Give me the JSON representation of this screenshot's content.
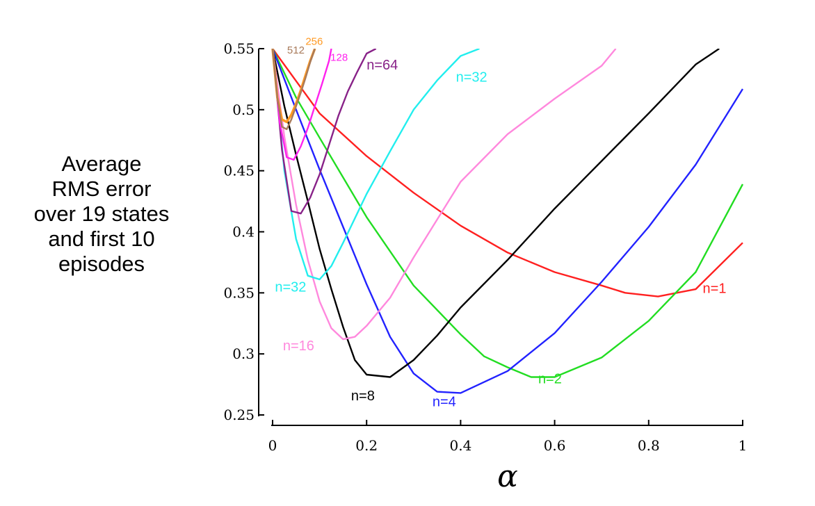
{
  "chart_data": {
    "type": "line",
    "xlabel": "α",
    "ylabel_lines": [
      "Average",
      "RMS error",
      "over 19 states",
      "and first 10",
      "episodes"
    ],
    "xlim": [
      0,
      1
    ],
    "ylim": [
      0.25,
      0.55
    ],
    "x_ticks": [
      0,
      0.2,
      0.4,
      0.6,
      0.8,
      1
    ],
    "x_tick_labels": [
      "0",
      "0.2",
      "0.4",
      "0.6",
      "0.8",
      "1"
    ],
    "y_ticks": [
      0.25,
      0.3,
      0.35,
      0.4,
      0.45,
      0.5,
      0.55
    ],
    "y_tick_labels": [
      "0.25",
      "0.3",
      "0.35",
      "0.4",
      "0.45",
      "0.5",
      "0.55"
    ],
    "grid": false,
    "series": [
      {
        "name": "n=1",
        "color": "#ff2020",
        "x": [
          0,
          0.1,
          0.2,
          0.3,
          0.4,
          0.5,
          0.6,
          0.7,
          0.75,
          0.82,
          0.9,
          1.0
        ],
        "y": [
          0.55,
          0.497,
          0.462,
          0.432,
          0.405,
          0.383,
          0.367,
          0.356,
          0.35,
          0.347,
          0.353,
          0.391
        ]
      },
      {
        "name": "n=2",
        "color": "#22dd22",
        "x": [
          0,
          0.05,
          0.1,
          0.2,
          0.3,
          0.4,
          0.45,
          0.5,
          0.55,
          0.6,
          0.7,
          0.8,
          0.9,
          1.0
        ],
        "y": [
          0.55,
          0.51,
          0.477,
          0.412,
          0.356,
          0.316,
          0.298,
          0.289,
          0.281,
          0.281,
          0.297,
          0.327,
          0.367,
          0.439
        ]
      },
      {
        "name": "n=4",
        "color": "#2222ff",
        "x": [
          0,
          0.05,
          0.1,
          0.15,
          0.2,
          0.25,
          0.3,
          0.35,
          0.4,
          0.5,
          0.6,
          0.7,
          0.8,
          0.9,
          1.0
        ],
        "y": [
          0.55,
          0.5,
          0.451,
          0.404,
          0.357,
          0.314,
          0.284,
          0.269,
          0.268,
          0.286,
          0.317,
          0.359,
          0.404,
          0.455,
          0.517
        ]
      },
      {
        "name": "n=8",
        "color": "#000000",
        "x": [
          0,
          0.025,
          0.05,
          0.075,
          0.1,
          0.125,
          0.15,
          0.175,
          0.2,
          0.25,
          0.3,
          0.35,
          0.4,
          0.5,
          0.6,
          0.7,
          0.8,
          0.9,
          0.95
        ],
        "y": [
          0.55,
          0.503,
          0.463,
          0.425,
          0.386,
          0.353,
          0.322,
          0.295,
          0.283,
          0.281,
          0.295,
          0.315,
          0.338,
          0.377,
          0.419,
          0.458,
          0.497,
          0.537,
          0.55
        ]
      },
      {
        "name": "n=16",
        "color": "#ff88dd",
        "x": [
          0,
          0.025,
          0.05,
          0.075,
          0.1,
          0.125,
          0.15,
          0.175,
          0.2,
          0.25,
          0.3,
          0.35,
          0.4,
          0.5,
          0.6,
          0.7,
          0.73
        ],
        "y": [
          0.55,
          0.478,
          0.422,
          0.377,
          0.343,
          0.321,
          0.312,
          0.314,
          0.323,
          0.346,
          0.379,
          0.41,
          0.441,
          0.48,
          0.509,
          0.536,
          0.55
        ]
      },
      {
        "name": "n=32",
        "color": "#22eeee",
        "x": [
          0,
          0.025,
          0.05,
          0.075,
          0.1,
          0.125,
          0.15,
          0.2,
          0.25,
          0.3,
          0.35,
          0.4,
          0.44
        ],
        "y": [
          0.55,
          0.45,
          0.394,
          0.364,
          0.361,
          0.372,
          0.391,
          0.431,
          0.466,
          0.5,
          0.524,
          0.544,
          0.55
        ]
      },
      {
        "name": "n=64",
        "color": "#882288",
        "x": [
          0,
          0.02,
          0.04,
          0.06,
          0.08,
          0.1,
          0.12,
          0.14,
          0.16,
          0.18,
          0.2,
          0.22
        ],
        "y": [
          0.55,
          0.467,
          0.417,
          0.415,
          0.428,
          0.447,
          0.471,
          0.495,
          0.515,
          0.531,
          0.546,
          0.55
        ]
      },
      {
        "name": "128",
        "color": "#ff22ee",
        "x": [
          0,
          0.015,
          0.03,
          0.045,
          0.06,
          0.075,
          0.09,
          0.105,
          0.12,
          0.125
        ],
        "y": [
          0.55,
          0.49,
          0.461,
          0.459,
          0.47,
          0.485,
          0.503,
          0.521,
          0.54,
          0.55
        ]
      },
      {
        "name": "256",
        "color": "#ff9922",
        "x": [
          0,
          0.01,
          0.02,
          0.03,
          0.04,
          0.05,
          0.06,
          0.07,
          0.08,
          0.09
        ],
        "y": [
          0.55,
          0.51,
          0.492,
          0.49,
          0.496,
          0.505,
          0.516,
          0.528,
          0.54,
          0.55
        ]
      },
      {
        "name": "512",
        "color": "#a87a5a",
        "x": [
          0,
          0.01,
          0.02,
          0.03,
          0.04,
          0.05,
          0.06,
          0.07,
          0.08,
          0.09
        ],
        "y": [
          0.55,
          0.51,
          0.486,
          0.484,
          0.492,
          0.503,
          0.514,
          0.526,
          0.539,
          0.55
        ]
      }
    ],
    "annotations": [
      {
        "text": "n=1",
        "series": "n=1",
        "x": 0.915,
        "y": 0.35,
        "anchor": "start"
      },
      {
        "text": "n=2",
        "series": "n=2",
        "x": 0.565,
        "y": 0.276,
        "anchor": "start"
      },
      {
        "text": "n=4",
        "series": "n=4",
        "x": 0.34,
        "y": 0.257,
        "anchor": "start"
      },
      {
        "text": "n=8",
        "series": "n=8",
        "x": 0.167,
        "y": 0.262,
        "anchor": "start"
      },
      {
        "text": "n=16",
        "series": "n=16",
        "x": 0.022,
        "y": 0.303,
        "anchor": "start"
      },
      {
        "text": "n=32",
        "series": "n=32",
        "x": 0.005,
        "y": 0.351,
        "anchor": "start"
      },
      {
        "text": "n=32",
        "series": "n=32",
        "x": 0.39,
        "y": 0.523,
        "anchor": "start"
      },
      {
        "text": "n=64",
        "series": "n=64",
        "x": 0.2,
        "y": 0.533,
        "anchor": "start"
      },
      {
        "text": "128",
        "series": "128",
        "x": 0.123,
        "y": 0.54,
        "anchor": "start",
        "small": true
      },
      {
        "text": "256",
        "series": "256",
        "x": 0.07,
        "y": 0.553,
        "anchor": "start",
        "small": true
      },
      {
        "text": "512",
        "series": "512",
        "x": 0.068,
        "y": 0.546,
        "anchor": "end",
        "small": true
      }
    ]
  }
}
